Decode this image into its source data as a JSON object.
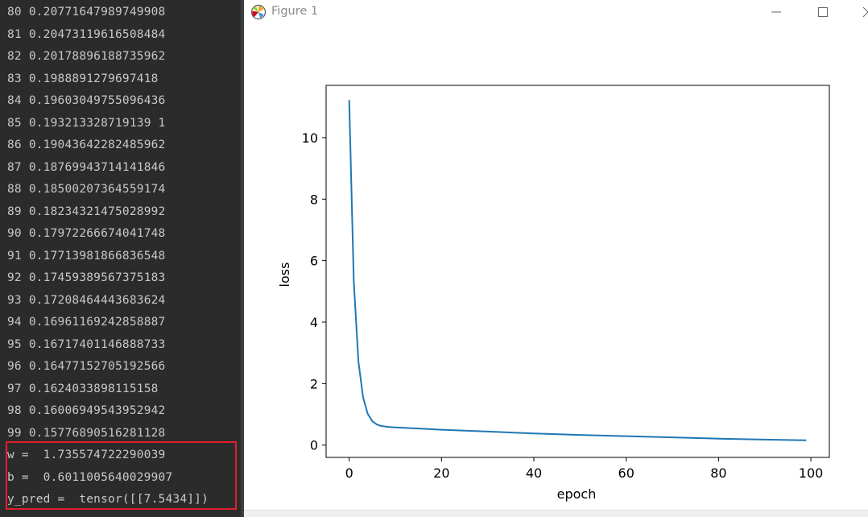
{
  "terminal": {
    "lines": [
      {
        "epoch": "80",
        "loss": "0.20771647989749908"
      },
      {
        "epoch": "81",
        "loss": "0.20473119616508484"
      },
      {
        "epoch": "82",
        "loss": "0.20178896188735962"
      },
      {
        "epoch": "83",
        "loss": "0.1988891279697418"
      },
      {
        "epoch": "84",
        "loss": "0.19603049755096436"
      },
      {
        "epoch": "85",
        "loss": "0.193213328719139 1"
      },
      {
        "epoch": "86",
        "loss": "0.19043642282485962"
      },
      {
        "epoch": "87",
        "loss": "0.18769943714141846"
      },
      {
        "epoch": "88",
        "loss": "0.18500207364559174"
      },
      {
        "epoch": "89",
        "loss": "0.18234321475028992"
      },
      {
        "epoch": "90",
        "loss": "0.17972266674041748"
      },
      {
        "epoch": "91",
        "loss": "0.17713981866836548"
      },
      {
        "epoch": "92",
        "loss": "0.17459389567375183"
      },
      {
        "epoch": "93",
        "loss": "0.17208464443683624"
      },
      {
        "epoch": "94",
        "loss": "0.16961169242858887"
      },
      {
        "epoch": "95",
        "loss": "0.16717401146888733"
      },
      {
        "epoch": "96",
        "loss": "0.16477152705192566"
      },
      {
        "epoch": "97",
        "loss": "0.1624033898115158"
      },
      {
        "epoch": "98",
        "loss": "0.16006949543952942"
      },
      {
        "epoch": "99",
        "loss": "0.15776890516281128"
      }
    ],
    "results": [
      "w =  1.735574722290039",
      "b =  0.6011005640029907",
      "y_pred =  tensor([[7.5434]])"
    ],
    "highlight_color": "#e0212b"
  },
  "window": {
    "title": "Figure 1",
    "icon": "matplotlib-icon",
    "buttons": [
      "minimize-icon",
      "maximize-icon",
      "close-icon"
    ]
  },
  "chart_data": {
    "type": "line",
    "title": "",
    "xlabel": "epoch",
    "ylabel": "loss",
    "xlim": [
      -5,
      104
    ],
    "ylim": [
      -0.4,
      11.7
    ],
    "xticks": [
      0,
      20,
      40,
      60,
      80,
      100
    ],
    "yticks": [
      0,
      2,
      4,
      6,
      8,
      10
    ],
    "grid": false,
    "line_color": "#1f77b4",
    "series": [
      {
        "x": [
          0,
          1,
          2,
          3,
          4,
          5,
          6,
          7,
          8,
          9,
          10,
          15,
          20,
          30,
          40,
          50,
          60,
          70,
          80,
          90,
          99
        ],
        "values": [
          11.22,
          5.3,
          2.72,
          1.56,
          1.02,
          0.78,
          0.67,
          0.62,
          0.6,
          0.585,
          0.575,
          0.54,
          0.5,
          0.44,
          0.38,
          0.33,
          0.29,
          0.25,
          0.21,
          0.18,
          0.158
        ]
      }
    ]
  }
}
